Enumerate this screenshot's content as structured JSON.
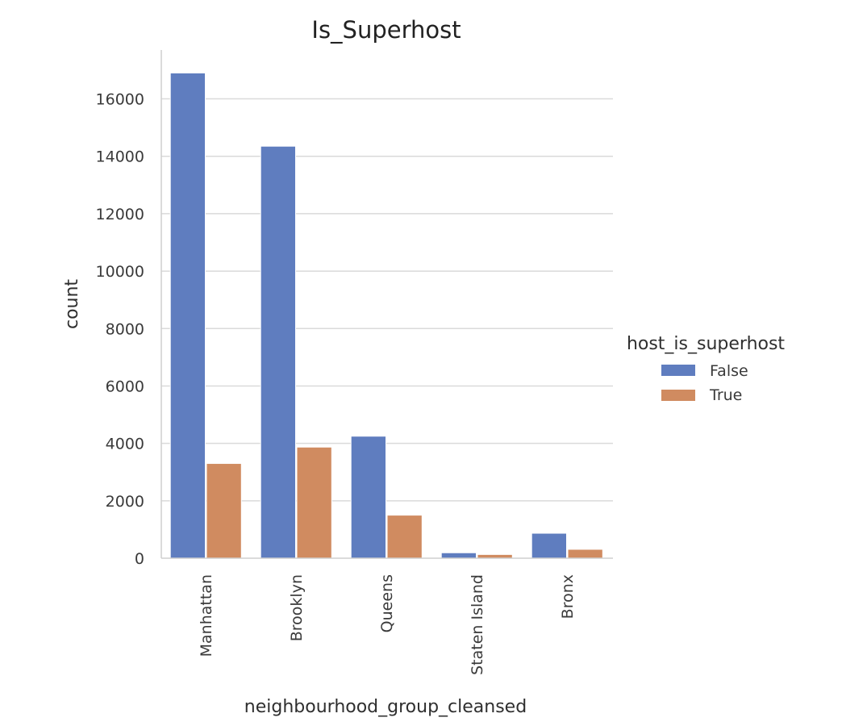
{
  "chart_data": {
    "type": "bar",
    "title": "Is_Superhost",
    "xlabel": "neighbourhood_group_cleansed",
    "ylabel": "count",
    "categories": [
      "Manhattan",
      "Brooklyn",
      "Queens",
      "Staten Island",
      "Bronx"
    ],
    "series": [
      {
        "name": "False",
        "values": [
          16900,
          14350,
          4250,
          190,
          870
        ],
        "color": "#5f7dbf"
      },
      {
        "name": "True",
        "values": [
          3300,
          3870,
          1500,
          130,
          310
        ],
        "color": "#d08b60"
      }
    ],
    "ylim": [
      0,
      17700
    ],
    "yticks": [
      0,
      2000,
      4000,
      6000,
      8000,
      10000,
      12000,
      14000,
      16000
    ],
    "grid": "horizontal",
    "legend": {
      "title": "host_is_superhost",
      "placement": "right"
    }
  }
}
